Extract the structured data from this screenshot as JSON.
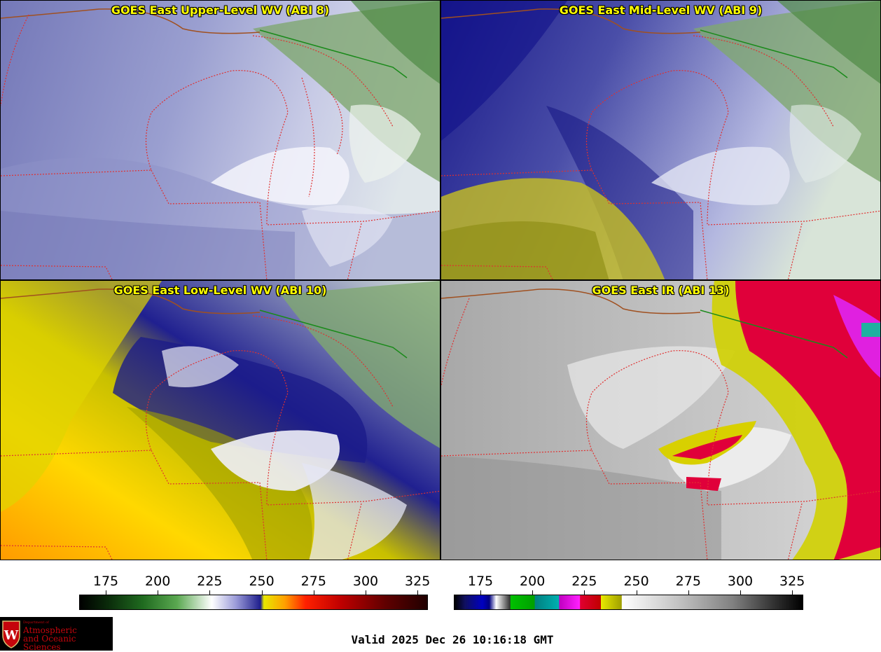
{
  "panels": [
    {
      "id": "upper",
      "title": "GOES East Upper-Level WV (ABI 8)"
    },
    {
      "id": "mid",
      "title": "GOES East Mid-Level WV (ABI 9)"
    },
    {
      "id": "low",
      "title": "GOES East Low-Level WV (ABI 10)"
    },
    {
      "id": "ir",
      "title": "GOES East IR (ABI 13)"
    }
  ],
  "colorbars": {
    "wv": {
      "ticks": [
        "175",
        "200",
        "225",
        "250",
        "275",
        "300",
        "325"
      ]
    },
    "ir": {
      "ticks": [
        "175",
        "200",
        "225",
        "250",
        "275",
        "300",
        "325"
      ]
    }
  },
  "logo": {
    "dept": "Department of",
    "line1": "Atmospheric",
    "line2": "and Oceanic Sciences",
    "crest": "W"
  },
  "valid_time": "Valid 2025 Dec 26 10:16:18 GMT",
  "colors": {
    "border_state": "#e03030",
    "border_country": "#1a8a1a",
    "coast": "#a05020",
    "title": "#ffff00"
  }
}
